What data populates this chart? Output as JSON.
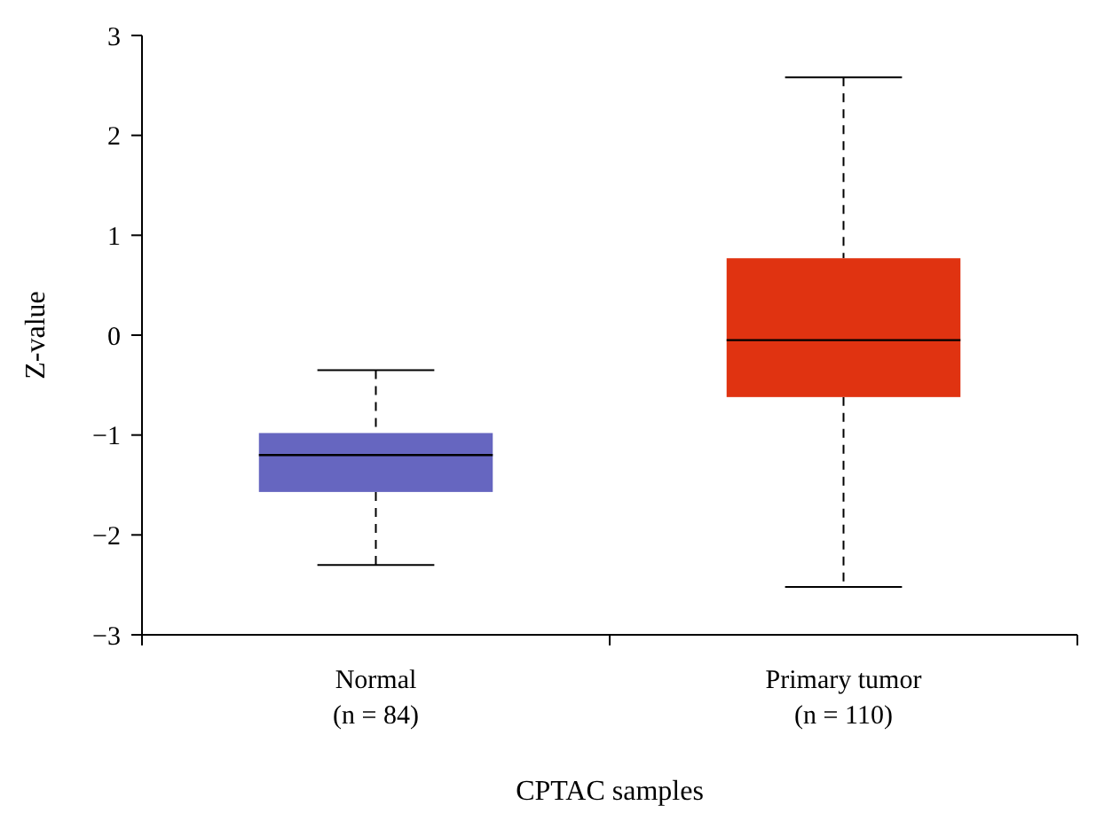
{
  "chart_data": {
    "type": "box",
    "xlabel": "CPTAC samples",
    "ylabel": "Z-value",
    "categories": [
      "Normal\n(n = 84)",
      "Primary tumor\n(n = 110)"
    ],
    "colors": [
      "#6666c0",
      "#e03311"
    ],
    "boxes": [
      {
        "low": -2.3,
        "q1": -1.57,
        "median": -1.2,
        "q3": -0.98,
        "high": -0.35
      },
      {
        "low": -2.52,
        "q1": -0.62,
        "median": -0.05,
        "q3": 0.77,
        "high": 2.58
      }
    ],
    "ylim": [
      -3,
      3
    ],
    "yticks": [
      {
        "value": -3,
        "label": "−3"
      },
      {
        "value": -2,
        "label": "−2"
      },
      {
        "value": -1,
        "label": "−1"
      },
      0,
      1,
      2,
      3
    ],
    "grid": false,
    "line_style": "dashed"
  }
}
